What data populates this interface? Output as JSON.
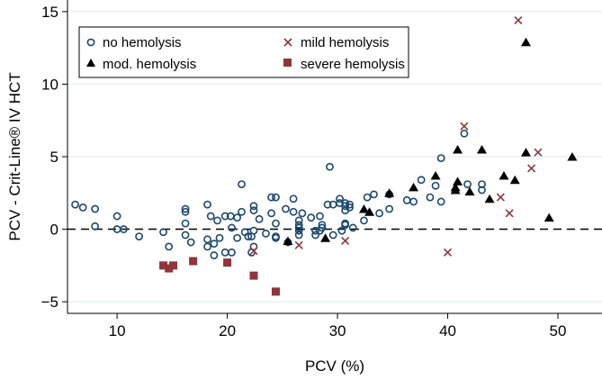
{
  "chart_data": {
    "type": "scatter",
    "title": "",
    "xlabel": "PCV (%)",
    "ylabel": "PCV - Crit-Line® IV HCT",
    "xlim": [
      5.5,
      54
    ],
    "ylim": [
      -5.8,
      15.8
    ],
    "xticks": [
      10,
      20,
      30,
      40,
      50
    ],
    "yticks": [
      15,
      10,
      5,
      0,
      -5
    ],
    "ytick_labels": [
      "15",
      "10",
      "5",
      "0",
      "−5"
    ],
    "grid": "horizontal",
    "reference_line": {
      "y": 0,
      "style": "dashed"
    },
    "legend_position": "top-left",
    "colors": {
      "blue": "#1a476f",
      "red": "#90353b",
      "black": "#000000",
      "grid": "#e4eef0"
    },
    "series": [
      {
        "name": "no hemolysis",
        "marker": "circle",
        "color": "#1a476f",
        "points": [
          [
            6.2,
            1.7
          ],
          [
            6.9,
            1.5
          ],
          [
            8.0,
            1.4
          ],
          [
            8.0,
            0.2
          ],
          [
            10.0,
            0.9
          ],
          [
            10.0,
            0.0
          ],
          [
            10.6,
            0.0
          ],
          [
            12.0,
            -0.5
          ],
          [
            14.2,
            -0.2
          ],
          [
            14.7,
            -1.2
          ],
          [
            16.2,
            1.4
          ],
          [
            16.2,
            1.2
          ],
          [
            16.2,
            0.4
          ],
          [
            16.2,
            -0.4
          ],
          [
            16.7,
            -0.9
          ],
          [
            18.2,
            1.7
          ],
          [
            18.5,
            0.9
          ],
          [
            19.1,
            0.6
          ],
          [
            18.2,
            -0.7
          ],
          [
            18.2,
            -1.2
          ],
          [
            18.8,
            -1.0
          ],
          [
            18.8,
            -1.8
          ],
          [
            19.3,
            -0.6
          ],
          [
            19.8,
            0.9
          ],
          [
            20.3,
            0.9
          ],
          [
            19.8,
            -1.6
          ],
          [
            20.9,
            -0.6
          ],
          [
            20.4,
            0.1
          ],
          [
            20.4,
            -1.6
          ],
          [
            20.9,
            0.8
          ],
          [
            21.3,
            3.1
          ],
          [
            21.3,
            1.2
          ],
          [
            21.6,
            -0.2
          ],
          [
            21.9,
            -0.5
          ],
          [
            22.2,
            -0.5
          ],
          [
            22.4,
            -0.1
          ],
          [
            22.4,
            1.6
          ],
          [
            22.4,
            1.3
          ],
          [
            22.2,
            -1.6
          ],
          [
            22.4,
            -1.2
          ],
          [
            22.9,
            0.7
          ],
          [
            23.5,
            -0.3
          ],
          [
            24.0,
            2.2
          ],
          [
            24.4,
            2.2
          ],
          [
            24.0,
            1.1
          ],
          [
            24.4,
            0.4
          ],
          [
            24.4,
            -0.5
          ],
          [
            24.4,
            -0.6
          ],
          [
            25.3,
            1.4
          ],
          [
            25.5,
            -0.9
          ],
          [
            26.0,
            2.1
          ],
          [
            26.0,
            1.2
          ],
          [
            26.5,
            0.6
          ],
          [
            26.5,
            0.3
          ],
          [
            26.5,
            0.1
          ],
          [
            26.5,
            -0.1
          ],
          [
            26.5,
            -0.4
          ],
          [
            26.8,
            1.1
          ],
          [
            27.6,
            0.8
          ],
          [
            28.0,
            -0.1
          ],
          [
            28.0,
            -0.4
          ],
          [
            28.4,
            0.9
          ],
          [
            28.4,
            -0.1
          ],
          [
            28.6,
            0.3
          ],
          [
            28.6,
            0.1
          ],
          [
            29.1,
            1.7
          ],
          [
            29.3,
            4.3
          ],
          [
            29.6,
            1.7
          ],
          [
            29.6,
            -0.4
          ],
          [
            30.2,
            2.1
          ],
          [
            30.2,
            1.8
          ],
          [
            30.7,
            1.8
          ],
          [
            30.7,
            1.6
          ],
          [
            30.7,
            1.3
          ],
          [
            31.1,
            1.7
          ],
          [
            31.1,
            1.5
          ],
          [
            30.7,
            0.4
          ],
          [
            30.7,
            0.3
          ],
          [
            30.4,
            -0.1
          ],
          [
            31.4,
            0.1
          ],
          [
            32.4,
            0.6
          ],
          [
            32.7,
            2.2
          ],
          [
            33.3,
            2.4
          ],
          [
            33.8,
            1.1
          ],
          [
            34.7,
            1.4
          ],
          [
            34.7,
            2.4
          ],
          [
            36.3,
            2.0
          ],
          [
            36.9,
            1.9
          ],
          [
            37.6,
            3.4
          ],
          [
            38.4,
            2.2
          ],
          [
            38.9,
            3.0
          ],
          [
            39.4,
            4.9
          ],
          [
            39.4,
            1.9
          ],
          [
            41.5,
            6.6
          ],
          [
            41.8,
            3.1
          ],
          [
            43.1,
            3.1
          ],
          [
            43.1,
            2.7
          ]
        ]
      },
      {
        "name": "mild hemolysis",
        "marker": "x",
        "color": "#90353b",
        "points": [
          [
            46.4,
            14.4
          ],
          [
            41.5,
            7.1
          ],
          [
            48.2,
            5.3
          ],
          [
            47.6,
            4.2
          ],
          [
            44.8,
            2.2
          ],
          [
            45.6,
            1.1
          ],
          [
            40.0,
            -1.6
          ],
          [
            22.4,
            -1.5
          ],
          [
            26.5,
            -1.1
          ],
          [
            30.7,
            -0.8
          ]
        ]
      },
      {
        "name": "mod. hemolysis",
        "marker": "triangle",
        "color": "#000000",
        "points": [
          [
            25.5,
            -0.8
          ],
          [
            28.9,
            -0.6
          ],
          [
            32.4,
            1.4
          ],
          [
            32.9,
            1.2
          ],
          [
            34.7,
            2.5
          ],
          [
            47.1,
            12.9
          ],
          [
            40.9,
            5.5
          ],
          [
            43.1,
            5.5
          ],
          [
            47.1,
            5.3
          ],
          [
            51.3,
            5.0
          ],
          [
            38.9,
            3.7
          ],
          [
            36.9,
            2.9
          ],
          [
            40.9,
            3.3
          ],
          [
            40.7,
            2.9
          ],
          [
            40.7,
            2.7
          ],
          [
            42.0,
            2.6
          ],
          [
            43.8,
            2.1
          ],
          [
            45.1,
            3.7
          ],
          [
            46.1,
            3.4
          ],
          [
            49.2,
            0.8
          ]
        ]
      },
      {
        "name": "severe hemolysis",
        "marker": "square",
        "color": "#90353b",
        "points": [
          [
            14.2,
            -2.5
          ],
          [
            14.7,
            -2.7
          ],
          [
            15.1,
            -2.5
          ],
          [
            16.9,
            -2.2
          ],
          [
            20.0,
            -2.3
          ],
          [
            22.4,
            -3.2
          ],
          [
            24.4,
            -4.3
          ]
        ]
      }
    ]
  }
}
